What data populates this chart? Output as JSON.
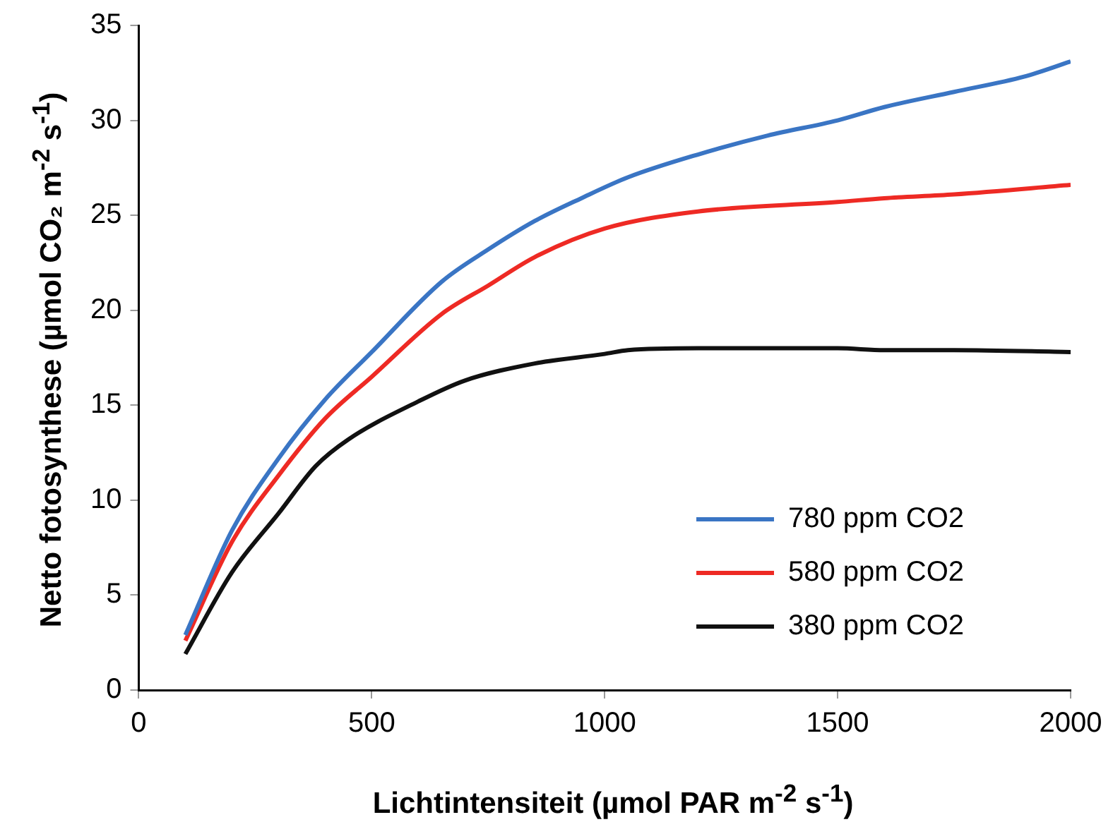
{
  "chart_data": {
    "type": "line",
    "xlabel": "Lichtintensiteit (µmol PAR m$^{-2}$ s$^{-1}$)",
    "ylabel": "Netto fotosynthese (µmol CO₂ m$^{-2}$ s$^{-1}$)",
    "xlim": [
      0,
      2000
    ],
    "xticks": [
      0,
      500,
      1000,
      1500,
      2000
    ],
    "ylim": [
      0,
      35
    ],
    "yticks": [
      0,
      5,
      10,
      15,
      20,
      25,
      30,
      35
    ],
    "grid": false,
    "legend": "bottom right",
    "marker": "none",
    "line_style": "solid",
    "series": [
      {
        "name": "780 ppm CO2",
        "color": "#3a75c4",
        "x": [
          100,
          200,
          300,
          400,
          500,
          650,
          750,
          850,
          950,
          1050,
          1200,
          1350,
          1500,
          1600,
          1750,
          1900,
          2000
        ],
        "values": [
          2.9,
          8.4,
          12.2,
          15.3,
          17.8,
          21.5,
          23.2,
          24.7,
          25.9,
          27.0,
          28.2,
          29.2,
          30.0,
          30.7,
          31.5,
          32.3,
          33.1
        ]
      },
      {
        "name": "580 ppm CO2",
        "color": "#ee2a24",
        "x": [
          100,
          200,
          300,
          400,
          500,
          650,
          750,
          850,
          1000,
          1200,
          1500,
          1600,
          1750,
          2000
        ],
        "values": [
          2.6,
          7.8,
          11.3,
          14.3,
          16.5,
          19.8,
          21.3,
          22.8,
          24.3,
          25.2,
          25.7,
          25.9,
          26.1,
          26.6
        ]
      },
      {
        "name": "380 ppm CO2",
        "color": "#111111",
        "x": [
          100,
          200,
          300,
          380,
          450,
          600,
          700,
          850,
          1000,
          1050,
          1200,
          1500,
          1600,
          1750,
          2000
        ],
        "values": [
          1.9,
          6.2,
          9.3,
          11.8,
          13.2,
          15.2,
          16.3,
          17.2,
          17.7,
          17.9,
          18.0,
          18.0,
          17.9,
          17.9,
          17.8
        ]
      }
    ]
  }
}
